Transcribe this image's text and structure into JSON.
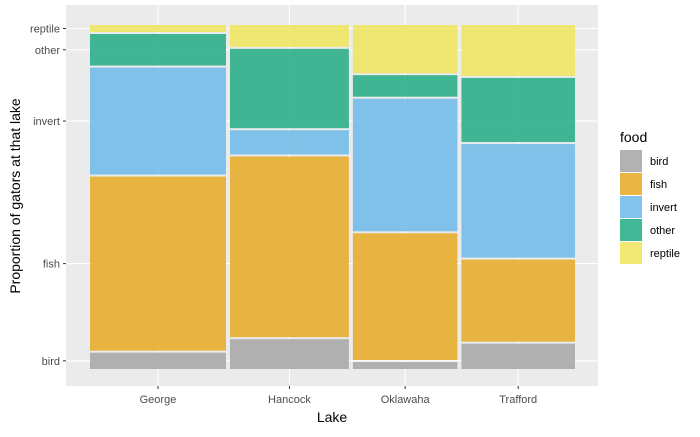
{
  "chart_data": {
    "type": "mosaic",
    "xlabel": "Lake",
    "ylabel": "Proportion of gators at that lake",
    "legend": {
      "title": "food",
      "placement": "right"
    },
    "categories": [
      "George",
      "Hancock",
      "Oklawaha",
      "Trafford"
    ],
    "column_widths": [
      0.255,
      0.223,
      0.196,
      0.213
    ],
    "y_ticks": [
      "bird",
      "fish",
      "invert",
      "other",
      "reptile"
    ],
    "grid": true,
    "colors": {
      "bird": "#AAAAAA",
      "fish": "#E7AD2F",
      "invert": "#73BDE8",
      "other": "#2EAF8A",
      "reptile": "#EFE464"
    },
    "series": [
      {
        "name": "bird",
        "values": [
          0.053,
          0.092,
          0.026,
          0.079
        ]
      },
      {
        "name": "fish",
        "values": [
          0.509,
          0.528,
          0.372,
          0.243
        ]
      },
      {
        "name": "invert",
        "values": [
          0.315,
          0.076,
          0.389,
          0.334
        ]
      },
      {
        "name": "other",
        "values": [
          0.097,
          0.235,
          0.068,
          0.191
        ]
      },
      {
        "name": "reptile",
        "values": [
          0.026,
          0.069,
          0.145,
          0.153
        ]
      }
    ]
  }
}
